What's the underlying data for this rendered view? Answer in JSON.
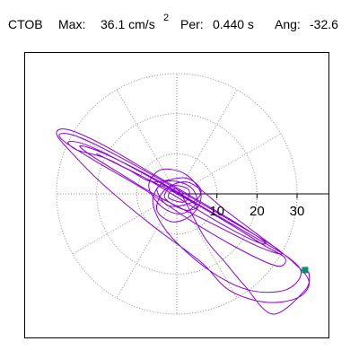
{
  "header": {
    "station": "CTOB",
    "max_label": "Max:",
    "max_value": "36.1 cm/s",
    "max_exp": "2",
    "per_label": "Per:",
    "per_value": "0.440 s",
    "ang_label": "Ang:",
    "ang_value": "-32.6"
  },
  "chart_data": {
    "type": "polar-orbit",
    "title": "",
    "radial_ticks": [
      "10",
      "20",
      "30"
    ],
    "radial_tick_values": [
      10,
      20,
      30
    ],
    "rmax": 30,
    "spoke_angles_deg": [
      0,
      30,
      60,
      90,
      120,
      150,
      180,
      210,
      240,
      270,
      300,
      330
    ],
    "grid": true,
    "colors": {
      "trace": "#8b00d9",
      "marker": "#009070",
      "grid": "#8a8a8a",
      "axis": "#000000",
      "frame": "#000000"
    },
    "trace_points": [
      [
        0,
        0
      ],
      [
        -3,
        2
      ],
      [
        -5,
        1
      ],
      [
        -2,
        -3
      ],
      [
        4,
        -2
      ],
      [
        6,
        1
      ],
      [
        2,
        4
      ],
      [
        -6,
        3
      ],
      [
        -12,
        6
      ],
      [
        -18,
        9
      ],
      [
        -25,
        11
      ],
      [
        -27,
        13
      ],
      [
        -22,
        12
      ],
      [
        -10,
        6
      ],
      [
        4,
        -2
      ],
      [
        14,
        -8
      ],
      [
        22,
        -13
      ],
      [
        27,
        -16
      ],
      [
        25,
        -18
      ],
      [
        16,
        -14
      ],
      [
        4,
        -7
      ],
      [
        -8,
        1
      ],
      [
        -20,
        8
      ],
      [
        -28,
        13
      ],
      [
        -29,
        15
      ],
      [
        -24,
        14
      ],
      [
        -12,
        8
      ],
      [
        2,
        0
      ],
      [
        14,
        -7
      ],
      [
        24,
        -13
      ],
      [
        26,
        -15
      ],
      [
        20,
        -13
      ],
      [
        8,
        -7
      ],
      [
        -4,
        -1
      ],
      [
        -14,
        5
      ],
      [
        -22,
        10
      ],
      [
        -24,
        12
      ],
      [
        -18,
        10
      ],
      [
        -6,
        4
      ],
      [
        6,
        -3
      ],
      [
        18,
        -10
      ],
      [
        28,
        -16
      ],
      [
        31,
        -20
      ],
      [
        27,
        -24
      ],
      [
        18,
        -24
      ],
      [
        8,
        -19
      ],
      [
        -2,
        -10
      ],
      [
        -6,
        -2
      ],
      [
        -3,
        3
      ],
      [
        3,
        2
      ],
      [
        5,
        -2
      ],
      [
        1,
        -5
      ],
      [
        -4,
        -3
      ],
      [
        -7,
        2
      ],
      [
        -4,
        6
      ],
      [
        2,
        5
      ],
      [
        6,
        0
      ],
      [
        4,
        -5
      ],
      [
        -1,
        -7
      ],
      [
        -5,
        -4
      ],
      [
        -3,
        1
      ],
      [
        2,
        3
      ],
      [
        6,
        1
      ],
      [
        12,
        -4
      ],
      [
        20,
        -10
      ],
      [
        29,
        -17
      ],
      [
        33,
        -22
      ],
      [
        30,
        -26
      ],
      [
        22,
        -27
      ],
      [
        13,
        -24
      ],
      [
        6,
        -17
      ],
      [
        -6,
        -8
      ],
      [
        -18,
        2
      ],
      [
        -26,
        10
      ],
      [
        -30,
        15
      ],
      [
        -27,
        16
      ],
      [
        -18,
        12
      ],
      [
        -6,
        5
      ],
      [
        6,
        -2
      ],
      [
        16,
        -8
      ],
      [
        22,
        -12
      ],
      [
        20,
        -12
      ],
      [
        12,
        -8
      ],
      [
        2,
        -2
      ],
      [
        -8,
        4
      ],
      [
        -16,
        8
      ],
      [
        -20,
        10
      ],
      [
        -16,
        8
      ],
      [
        -8,
        4
      ],
      [
        0,
        0
      ],
      [
        5,
        -3
      ],
      [
        2,
        -4
      ],
      [
        -3,
        -1
      ],
      [
        -1,
        2
      ],
      [
        3,
        1
      ],
      [
        2,
        -2
      ],
      [
        -2,
        -1
      ],
      [
        -1,
        1
      ],
      [
        1,
        0
      ],
      [
        7,
        -11
      ],
      [
        12,
        -17
      ],
      [
        17,
        -23
      ],
      [
        24,
        -30
      ],
      [
        32,
        -24
      ],
      [
        33,
        -20
      ],
      [
        32,
        -19
      ]
    ],
    "end_point": [
      32,
      -19
    ]
  }
}
